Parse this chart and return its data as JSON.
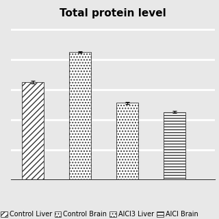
{
  "title": "Total protein level",
  "bars": [
    {
      "label": "Control Liver",
      "value": 6.5,
      "error": 0.08,
      "hatch": "////",
      "facecolor": "white",
      "edgecolor": "#333333"
    },
    {
      "label": "Control Brain",
      "value": 8.5,
      "error": 0.05,
      "hatch": "....",
      "facecolor": "white",
      "edgecolor": "#333333"
    },
    {
      "label": "AlCl3 Liver",
      "value": 5.1,
      "error": 0.07,
      "hatch": "....",
      "facecolor": "white",
      "edgecolor": "#333333"
    },
    {
      "label": "AlCl Brain",
      "value": 4.5,
      "error": 0.06,
      "hatch": "----",
      "facecolor": "white",
      "edgecolor": "#333333"
    }
  ],
  "bar_width": 0.6,
  "ylim": [
    0,
    10.5
  ],
  "background_color": "#e8e8e8",
  "title_fontsize": 11,
  "title_fontweight": "bold",
  "legend_fontsize": 7,
  "grid_color": "white",
  "grid_linewidth": 2.0,
  "positions": [
    0.5,
    1.8,
    3.1,
    4.4
  ],
  "xlim": [
    -0.1,
    5.5
  ]
}
